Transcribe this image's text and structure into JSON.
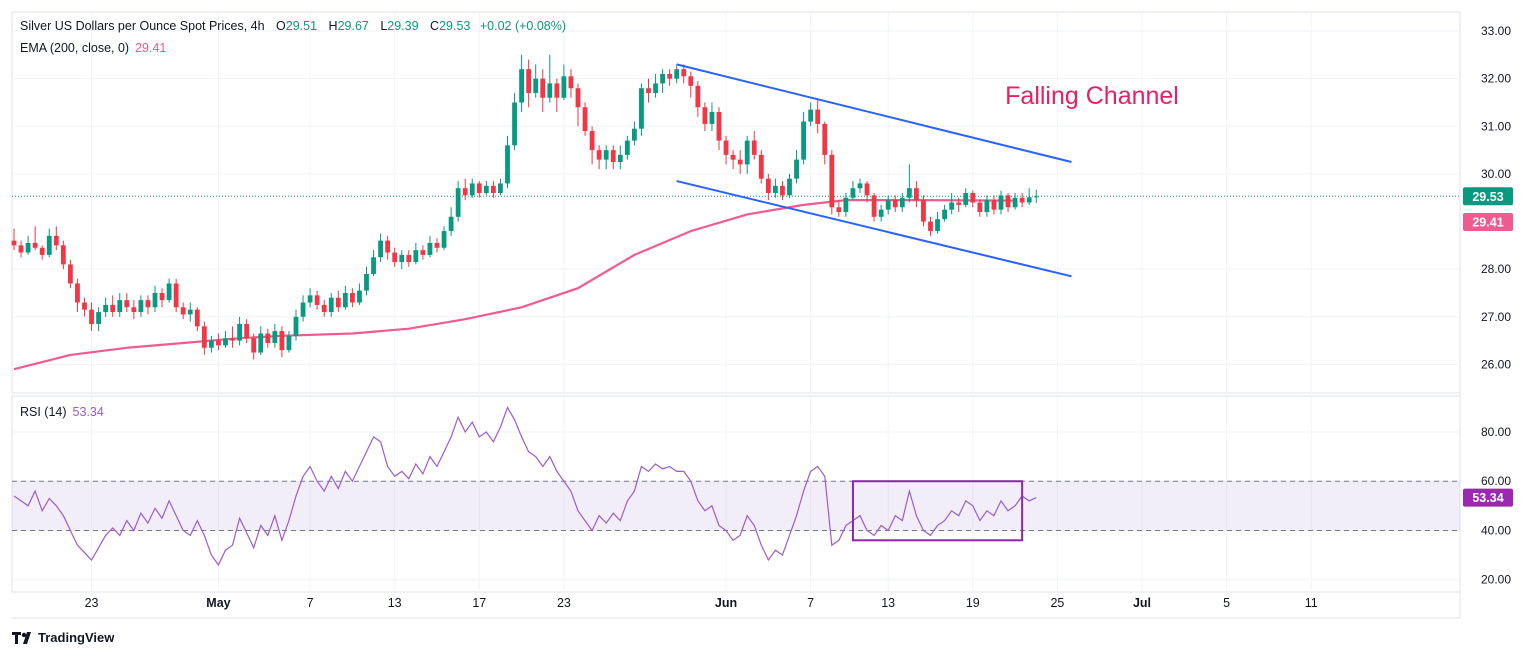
{
  "header": {
    "title": "Silver US Dollars per Ounce Spot Prices, 4h",
    "open_label": "O",
    "open": "29.51",
    "high_label": "H",
    "high": "29.67",
    "low_label": "L",
    "low": "29.39",
    "close_label": "C",
    "close": "29.53",
    "change": "+0.02 (+0.08%)",
    "ema_label": "EMA (200, close, 0)",
    "ema_value": "29.41",
    "rsi_label": "RSI (14)",
    "rsi_value": "53.34"
  },
  "annotation": "Falling Channel",
  "brand": "TradingView",
  "colors": {
    "up": "#089981",
    "down": "#f23645",
    "ema": "#ef5b8c",
    "rsi": "#9c5bd1",
    "channel": "#2962ff",
    "annotation": "#e91e63"
  },
  "chart_data": [
    {
      "type": "candlestick",
      "title": "Silver US Dollars per Ounce Spot Prices, 4h",
      "ylim": [
        25.4,
        33.4
      ],
      "y_ticks": [
        "33.00",
        "32.00",
        "31.00",
        "30.00",
        "28.00",
        "27.00",
        "26.00"
      ],
      "price_labels": [
        {
          "name": "close",
          "value": 29.53,
          "text": "29.53"
        },
        {
          "name": "ema",
          "value": 29.41,
          "text": "29.41"
        }
      ],
      "series": [
        {
          "name": "EMA (200, close, 0)"
        }
      ],
      "ema_path": [
        [
          0,
          25.9
        ],
        [
          8,
          26.2
        ],
        [
          16,
          26.35
        ],
        [
          24,
          26.45
        ],
        [
          32,
          26.55
        ],
        [
          38,
          26.6
        ],
        [
          48,
          26.65
        ],
        [
          56,
          26.75
        ],
        [
          64,
          26.95
        ],
        [
          72,
          27.2
        ],
        [
          80,
          27.6
        ],
        [
          88,
          28.3
        ],
        [
          96,
          28.8
        ],
        [
          104,
          29.15
        ],
        [
          112,
          29.35
        ],
        [
          118,
          29.45
        ],
        [
          128,
          29.45
        ],
        [
          142,
          29.44
        ]
      ],
      "channel": {
        "upper": [
          [
            94,
            32.3
          ],
          [
            150,
            30.25
          ]
        ],
        "lower": [
          [
            94,
            29.85
          ],
          [
            150,
            27.85
          ]
        ]
      },
      "x_ticks": [
        {
          "i": 11,
          "label": "23"
        },
        {
          "i": 29,
          "label": "May"
        },
        {
          "i": 42,
          "label": "7"
        },
        {
          "i": 54,
          "label": "13"
        },
        {
          "i": 66,
          "label": "17"
        },
        {
          "i": 78,
          "label": "23"
        },
        {
          "i": 101,
          "label": "Jun"
        },
        {
          "i": 113,
          "label": "7"
        },
        {
          "i": 124,
          "label": "13"
        },
        {
          "i": 136,
          "label": "19"
        },
        {
          "i": 148,
          "label": "25"
        },
        {
          "i": 160,
          "label": "Jul"
        },
        {
          "i": 172,
          "label": "5"
        },
        {
          "i": 184,
          "label": "11"
        }
      ],
      "candles": [
        [
          28.6,
          28.5,
          28.85,
          28.4
        ],
        [
          28.5,
          28.35,
          28.6,
          28.25
        ],
        [
          28.35,
          28.55,
          28.7,
          28.3
        ],
        [
          28.55,
          28.45,
          28.9,
          28.4
        ],
        [
          28.45,
          28.3,
          28.5,
          28.2
        ],
        [
          28.3,
          28.7,
          28.85,
          28.25
        ],
        [
          28.7,
          28.5,
          28.9,
          28.4
        ],
        [
          28.5,
          28.1,
          28.6,
          28.0
        ],
        [
          28.1,
          27.7,
          28.2,
          27.6
        ],
        [
          27.7,
          27.3,
          27.8,
          27.1
        ],
        [
          27.3,
          27.15,
          27.4,
          27.0
        ],
        [
          27.15,
          26.85,
          27.3,
          26.7
        ],
        [
          26.85,
          27.1,
          27.2,
          26.7
        ],
        [
          27.1,
          27.25,
          27.4,
          27.0
        ],
        [
          27.25,
          27.1,
          27.45,
          27.0
        ],
        [
          27.1,
          27.35,
          27.5,
          27.0
        ],
        [
          27.35,
          27.2,
          27.5,
          27.1
        ],
        [
          27.2,
          27.1,
          27.35,
          26.95
        ],
        [
          27.1,
          27.35,
          27.45,
          27.0
        ],
        [
          27.35,
          27.2,
          27.45,
          27.05
        ],
        [
          27.2,
          27.5,
          27.65,
          27.1
        ],
        [
          27.5,
          27.35,
          27.6,
          27.2
        ],
        [
          27.35,
          27.7,
          27.8,
          27.3
        ],
        [
          27.7,
          27.2,
          27.8,
          27.1
        ],
        [
          27.2,
          27.05,
          27.3,
          26.95
        ],
        [
          27.05,
          27.15,
          27.3,
          26.9
        ],
        [
          27.15,
          26.8,
          27.2,
          26.7
        ],
        [
          26.8,
          26.35,
          26.9,
          26.2
        ],
        [
          26.35,
          26.5,
          26.6,
          26.25
        ],
        [
          26.5,
          26.4,
          26.65,
          26.3
        ],
        [
          26.4,
          26.55,
          26.7,
          26.35
        ],
        [
          26.55,
          26.5,
          26.8,
          26.35
        ],
        [
          26.5,
          26.85,
          27.0,
          26.4
        ],
        [
          26.85,
          26.55,
          26.95,
          26.45
        ],
        [
          26.55,
          26.25,
          26.65,
          26.1
        ],
        [
          26.25,
          26.65,
          26.8,
          26.2
        ],
        [
          26.65,
          26.45,
          26.75,
          26.35
        ],
        [
          26.45,
          26.7,
          26.85,
          26.35
        ],
        [
          26.7,
          26.3,
          26.8,
          26.15
        ],
        [
          26.3,
          26.6,
          26.7,
          26.25
        ],
        [
          26.6,
          27.0,
          27.15,
          26.5
        ],
        [
          27.0,
          27.3,
          27.45,
          26.9
        ],
        [
          27.3,
          27.45,
          27.6,
          27.2
        ],
        [
          27.45,
          27.25,
          27.55,
          27.15
        ],
        [
          27.25,
          27.1,
          27.35,
          27.0
        ],
        [
          27.1,
          27.4,
          27.5,
          27.0
        ],
        [
          27.4,
          27.2,
          27.55,
          27.1
        ],
        [
          27.2,
          27.5,
          27.65,
          27.15
        ],
        [
          27.5,
          27.3,
          27.6,
          27.2
        ],
        [
          27.3,
          27.55,
          27.7,
          27.25
        ],
        [
          27.55,
          27.9,
          28.05,
          27.45
        ],
        [
          27.9,
          28.25,
          28.4,
          27.85
        ],
        [
          28.25,
          28.6,
          28.75,
          28.15
        ],
        [
          28.6,
          28.35,
          28.7,
          28.2
        ],
        [
          28.35,
          28.15,
          28.45,
          28.05
        ],
        [
          28.15,
          28.3,
          28.4,
          28.0
        ],
        [
          28.3,
          28.15,
          28.4,
          28.05
        ],
        [
          28.15,
          28.4,
          28.55,
          28.1
        ],
        [
          28.4,
          28.3,
          28.5,
          28.2
        ],
        [
          28.3,
          28.55,
          28.7,
          28.25
        ],
        [
          28.55,
          28.45,
          28.65,
          28.35
        ],
        [
          28.45,
          28.8,
          28.9,
          28.4
        ],
        [
          28.8,
          29.1,
          29.3,
          28.7
        ],
        [
          29.1,
          29.7,
          29.85,
          29.0
        ],
        [
          29.7,
          29.55,
          29.9,
          29.45
        ],
        [
          29.55,
          29.8,
          29.9,
          29.5
        ],
        [
          29.8,
          29.6,
          29.85,
          29.5
        ],
        [
          29.6,
          29.75,
          29.85,
          29.55
        ],
        [
          29.75,
          29.6,
          29.85,
          29.5
        ],
        [
          29.6,
          29.8,
          29.9,
          29.55
        ],
        [
          29.8,
          30.6,
          30.8,
          29.7
        ],
        [
          30.6,
          31.5,
          31.7,
          30.5
        ],
        [
          31.5,
          32.2,
          32.5,
          31.3
        ],
        [
          32.2,
          31.7,
          32.4,
          31.4
        ],
        [
          31.7,
          32.0,
          32.3,
          31.6
        ],
        [
          32.0,
          31.6,
          32.2,
          31.3
        ],
        [
          31.6,
          31.9,
          32.5,
          31.5
        ],
        [
          31.9,
          31.6,
          32.0,
          31.3
        ],
        [
          31.6,
          32.05,
          32.3,
          31.55
        ],
        [
          32.05,
          31.8,
          32.2,
          31.6
        ],
        [
          31.8,
          31.4,
          31.9,
          31.0
        ],
        [
          31.4,
          30.9,
          31.5,
          30.8
        ],
        [
          30.9,
          30.5,
          31.0,
          30.2
        ],
        [
          30.5,
          30.3,
          30.6,
          30.1
        ],
        [
          30.3,
          30.5,
          30.6,
          30.1
        ],
        [
          30.5,
          30.25,
          30.6,
          30.1
        ],
        [
          30.25,
          30.4,
          30.6,
          30.1
        ],
        [
          30.4,
          30.7,
          30.8,
          30.3
        ],
        [
          30.7,
          30.95,
          31.1,
          30.6
        ],
        [
          30.95,
          31.8,
          31.9,
          30.8
        ],
        [
          31.8,
          31.7,
          32.0,
          31.5
        ],
        [
          31.7,
          31.9,
          32.1,
          31.6
        ],
        [
          31.9,
          32.1,
          32.2,
          31.7
        ],
        [
          32.1,
          32.0,
          32.2,
          31.85
        ],
        [
          32.0,
          32.2,
          32.3,
          31.9
        ],
        [
          32.2,
          32.05,
          32.3,
          31.9
        ],
        [
          32.05,
          31.85,
          32.15,
          31.6
        ],
        [
          31.85,
          31.4,
          31.95,
          31.2
        ],
        [
          31.4,
          31.05,
          31.5,
          30.9
        ],
        [
          31.05,
          31.3,
          31.5,
          30.9
        ],
        [
          31.3,
          30.7,
          31.4,
          30.5
        ],
        [
          30.7,
          30.4,
          30.8,
          30.2
        ],
        [
          30.4,
          30.3,
          30.5,
          30.1
        ],
        [
          30.3,
          30.2,
          30.5,
          30.0
        ],
        [
          30.2,
          30.7,
          30.8,
          30.0
        ],
        [
          30.7,
          30.4,
          30.9,
          30.3
        ],
        [
          30.4,
          29.9,
          30.5,
          29.8
        ],
        [
          29.9,
          29.6,
          30.0,
          29.45
        ],
        [
          29.6,
          29.75,
          29.9,
          29.5
        ],
        [
          29.75,
          29.55,
          29.85,
          29.45
        ],
        [
          29.55,
          29.9,
          30.0,
          29.5
        ],
        [
          29.9,
          30.3,
          30.5,
          29.8
        ],
        [
          30.3,
          31.1,
          31.3,
          30.2
        ],
        [
          31.1,
          31.35,
          31.5,
          31.0
        ],
        [
          31.35,
          31.05,
          31.55,
          30.85
        ],
        [
          31.05,
          30.4,
          31.1,
          30.2
        ],
        [
          30.4,
          29.3,
          30.5,
          29.15
        ],
        [
          29.3,
          29.2,
          29.45,
          29.1
        ],
        [
          29.2,
          29.5,
          29.6,
          29.1
        ],
        [
          29.5,
          29.7,
          29.85,
          29.45
        ],
        [
          29.7,
          29.8,
          29.9,
          29.6
        ],
        [
          29.8,
          29.55,
          29.85,
          29.4
        ],
        [
          29.55,
          29.1,
          29.6,
          29.0
        ],
        [
          29.1,
          29.25,
          29.35,
          29.0
        ],
        [
          29.25,
          29.45,
          29.55,
          29.15
        ],
        [
          29.45,
          29.3,
          29.55,
          29.2
        ],
        [
          29.3,
          29.5,
          29.6,
          29.2
        ],
        [
          29.5,
          29.7,
          30.2,
          29.4
        ],
        [
          29.7,
          29.45,
          29.85,
          29.3
        ],
        [
          29.45,
          29.0,
          29.55,
          28.9
        ],
        [
          29.0,
          28.8,
          29.1,
          28.7
        ],
        [
          28.8,
          29.05,
          29.2,
          28.75
        ],
        [
          29.05,
          29.25,
          29.35,
          29.0
        ],
        [
          29.25,
          29.4,
          29.6,
          29.15
        ],
        [
          29.4,
          29.35,
          29.5,
          29.2
        ],
        [
          29.35,
          29.6,
          29.7,
          29.3
        ],
        [
          29.6,
          29.4,
          29.65,
          29.3
        ],
        [
          29.4,
          29.2,
          29.45,
          29.1
        ],
        [
          29.2,
          29.45,
          29.55,
          29.1
        ],
        [
          29.45,
          29.25,
          29.55,
          29.15
        ],
        [
          29.25,
          29.55,
          29.65,
          29.15
        ],
        [
          29.55,
          29.3,
          29.6,
          29.2
        ],
        [
          29.3,
          29.5,
          29.6,
          29.25
        ],
        [
          29.5,
          29.4,
          29.6,
          29.3
        ],
        [
          29.4,
          29.51,
          29.7,
          29.35
        ],
        [
          29.51,
          29.53,
          29.67,
          29.39
        ]
      ]
    },
    {
      "type": "line",
      "title": "RSI (14)",
      "ylim": [
        15,
        93
      ],
      "y_ticks": [
        "80.00",
        "60.00",
        "40.00",
        "20.00"
      ],
      "band": [
        40,
        60
      ],
      "price_labels": [
        {
          "name": "rsi",
          "value": 53.34,
          "text": "53.34"
        }
      ],
      "series": [
        {
          "name": "RSI (14)"
        }
      ],
      "highlight_box": {
        "i_start": 119,
        "i_end": 143,
        "y_low": 36,
        "y_high": 60
      },
      "values": [
        54,
        52,
        50,
        56,
        48,
        53,
        50,
        46,
        40,
        34,
        31,
        28,
        33,
        38,
        41,
        38,
        44,
        40,
        47,
        43,
        49,
        45,
        52,
        46,
        40,
        38,
        44,
        38,
        30,
        26,
        32,
        34,
        45,
        39,
        33,
        42,
        38,
        46,
        36,
        44,
        54,
        62,
        66,
        60,
        56,
        62,
        57,
        64,
        60,
        66,
        72,
        78,
        76,
        66,
        62,
        64,
        61,
        67,
        63,
        70,
        66,
        72,
        78,
        86,
        80,
        84,
        78,
        80,
        76,
        82,
        90,
        85,
        78,
        72,
        70,
        66,
        70,
        64,
        60,
        56,
        48,
        44,
        40,
        46,
        43,
        47,
        44,
        52,
        56,
        66,
        64,
        67,
        65,
        66,
        64,
        64,
        60,
        52,
        48,
        50,
        42,
        40,
        36,
        38,
        46,
        42,
        34,
        28,
        32,
        30,
        38,
        46,
        56,
        64,
        66,
        62,
        34,
        36,
        42,
        44,
        46,
        40,
        38,
        42,
        40,
        46,
        44,
        56,
        46,
        40,
        38,
        42,
        44,
        48,
        46,
        52,
        50,
        44,
        48,
        46,
        52,
        48,
        50,
        54,
        52,
        53.34
      ]
    }
  ]
}
